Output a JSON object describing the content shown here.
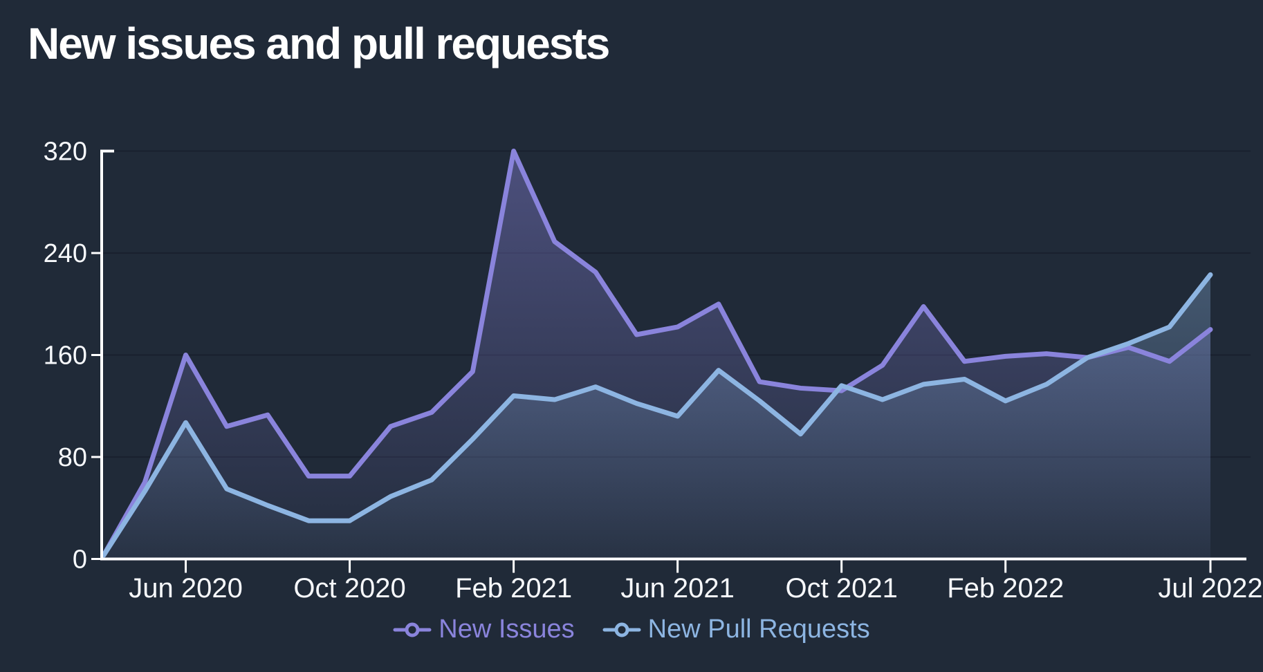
{
  "title": "New issues and pull requests",
  "colors": {
    "background": "#202a38",
    "grid": "#19202e",
    "axis": "#ffffff",
    "tick_text": "#f7f9fc",
    "issues": "#8a84dc",
    "pull_requests": "#8db5e2"
  },
  "legend": {
    "items": [
      {
        "label": "New Issues",
        "color": "#8a84dc",
        "icon": "line-dot-marker"
      },
      {
        "label": "New Pull Requests",
        "color": "#8db5e2",
        "icon": "line-dot-marker"
      }
    ]
  },
  "chart_data": {
    "type": "area",
    "title": "New issues and pull requests",
    "xlabel": "",
    "ylabel": "",
    "ylim": [
      0,
      320
    ],
    "y_ticks": [
      0,
      80,
      160,
      240,
      320
    ],
    "grid": "horizontal",
    "legend_position": "bottom-center",
    "x": [
      "Apr 2020",
      "May 2020",
      "Jun 2020",
      "Jul 2020",
      "Aug 2020",
      "Sep 2020",
      "Oct 2020",
      "Nov 2020",
      "Dec 2020",
      "Jan 2021",
      "Feb 2021",
      "Mar 2021",
      "Apr 2021",
      "May 2021",
      "Jun 2021",
      "Jul 2021",
      "Aug 2021",
      "Sep 2021",
      "Oct 2021",
      "Nov 2021",
      "Dec 2021",
      "Jan 2022",
      "Feb 2022",
      "Mar 2022",
      "Apr 2022",
      "May 2022",
      "Jun 2022",
      "Jul 2022"
    ],
    "x_tick_labels": [
      {
        "label": "Jun 2020",
        "index": 2
      },
      {
        "label": "Oct 2020",
        "index": 6
      },
      {
        "label": "Feb 2021",
        "index": 10
      },
      {
        "label": "Jun 2021",
        "index": 14
      },
      {
        "label": "Oct 2021",
        "index": 18
      },
      {
        "label": "Feb 2022",
        "index": 22
      },
      {
        "label": "Jul 2022",
        "index": 27
      }
    ],
    "series": [
      {
        "name": "New Issues",
        "color": "#8a84dc",
        "values": [
          3,
          60,
          160,
          104,
          113,
          65,
          65,
          104,
          115,
          147,
          320,
          249,
          225,
          176,
          182,
          200,
          139,
          134,
          132,
          152,
          198,
          155,
          159,
          161,
          158,
          166,
          155,
          180
        ]
      },
      {
        "name": "New Pull Requests",
        "color": "#8db5e2",
        "values": [
          3,
          53,
          107,
          55,
          42,
          30,
          30,
          49,
          62,
          94,
          128,
          125,
          135,
          122,
          112,
          148,
          124,
          98,
          136,
          125,
          137,
          141,
          124,
          137,
          158,
          169,
          182,
          223
        ]
      }
    ]
  }
}
